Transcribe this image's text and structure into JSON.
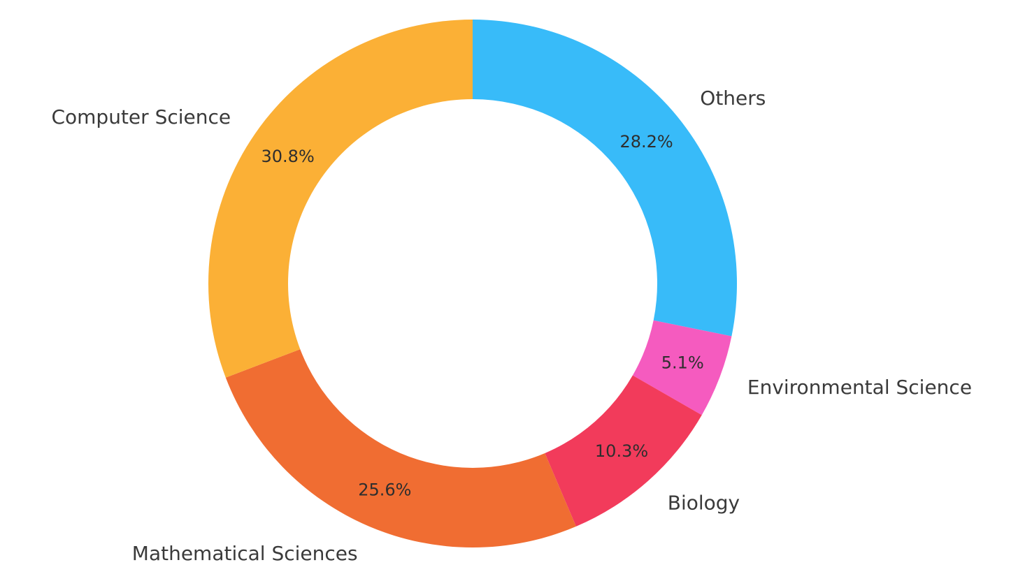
{
  "chart_data": {
    "type": "pie",
    "style": "donut",
    "start_angle_deg": 90,
    "direction": "clockwise",
    "slices": [
      {
        "label": "Others",
        "value": 28.2,
        "pct_label": "28.2%",
        "color": "#38bbf9"
      },
      {
        "label": "Environmental Science",
        "value": 5.1,
        "pct_label": "5.1%",
        "color": "#f55bbf"
      },
      {
        "label": "Biology",
        "value": 10.3,
        "pct_label": "10.3%",
        "color": "#f23b5b"
      },
      {
        "label": "Mathematical Sciences",
        "value": 25.6,
        "pct_label": "25.6%",
        "color": "#f06d32"
      },
      {
        "label": "Computer Science",
        "value": 30.8,
        "pct_label": "30.8%",
        "color": "#fbb036"
      }
    ],
    "legend": "none"
  }
}
